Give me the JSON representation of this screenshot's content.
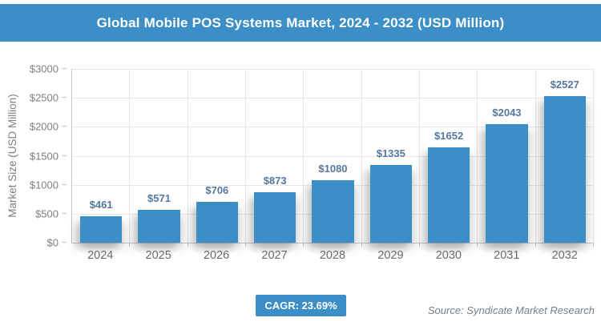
{
  "title": "Global Mobile POS Systems Market, 2024 - 2032 (USD Million)",
  "chart_data": {
    "type": "bar",
    "title": "Global Mobile POS Systems Market, 2024 - 2032 (USD Million)",
    "categories": [
      "2024",
      "2025",
      "2026",
      "2027",
      "2028",
      "2029",
      "2030",
      "2031",
      "2032"
    ],
    "values": [
      461,
      571,
      706,
      873,
      1080,
      1335,
      1652,
      2043,
      2527
    ],
    "data_labels": [
      "$461",
      "$571",
      "$706",
      "$873",
      "$1080",
      "$1335",
      "$1652",
      "$2043",
      "$2527"
    ],
    "xlabel": "",
    "ylabel": "Market Size (USD Million)",
    "ylim": [
      0,
      3000
    ],
    "yticks": [
      {
        "value": 0,
        "label": "$0"
      },
      {
        "value": 500,
        "label": "$500"
      },
      {
        "value": 1000,
        "label": "$1000"
      },
      {
        "value": 1500,
        "label": "$1500"
      },
      {
        "value": 2000,
        "label": "$2000"
      },
      {
        "value": 2500,
        "label": "$2500"
      },
      {
        "value": 3000,
        "label": "$3000"
      }
    ],
    "grid": true,
    "legend": "none",
    "bar_color": "#3b8ec6",
    "data_label_color": "#54779f"
  },
  "footer": {
    "cagr_label": "CAGR: 23.69%",
    "source": "Source: Syndicate Market Research"
  },
  "colors": {
    "accent_blue": "#3b8ec6",
    "axis_gray": "#c6c6c6",
    "gridline_gray": "#e7e7e7",
    "tick_text_gray": "#7f7f7f"
  }
}
